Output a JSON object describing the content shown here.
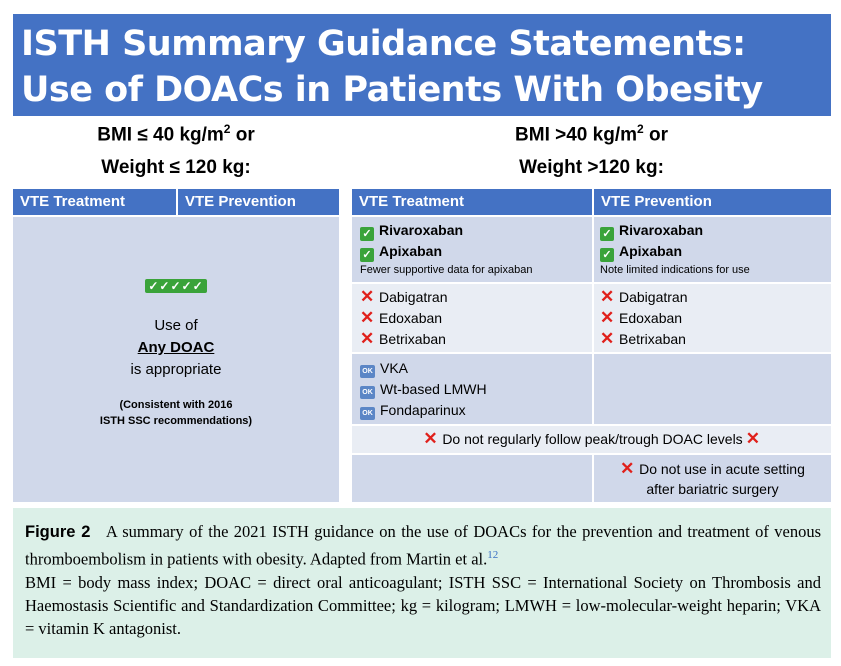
{
  "title": {
    "line1": "ISTH Summary Guidance Statements:",
    "line2": "Use of DOACs in Patients With Obesity"
  },
  "left": {
    "criteria_line1_pre": "BMI ≤ 40 kg/m",
    "criteria_line1_sup": "2",
    "criteria_line1_post": " or",
    "criteria_line2": "Weight ≤ 120 kg:",
    "headers": [
      "VTE Treatment",
      "VTE Prevention"
    ],
    "checkmarks": "✓✓✓✓✓",
    "use_of": "Use of",
    "any_doac": "Any DOAC",
    "is_appropriate": "is appropriate",
    "note_line1": "(Consistent with 2016",
    "note_line2": "ISTH SSC recommendations)"
  },
  "right": {
    "criteria_line1_pre": "BMI >40 kg/m",
    "criteria_line1_sup": "2",
    "criteria_line1_post": " or",
    "criteria_line2": "Weight >120 kg:",
    "headers": [
      "VTE Treatment",
      "VTE Prevention"
    ],
    "treatment": {
      "recommended": [
        "Rivaroxaban",
        "Apixaban"
      ],
      "recommended_note": "Fewer supportive data for apixaban",
      "not_recommended": [
        "Dabigatran",
        "Edoxaban",
        "Betrixaban"
      ],
      "alternatives": [
        "VKA",
        "Wt-based LMWH",
        "Fondaparinux"
      ]
    },
    "prevention": {
      "recommended": [
        "Rivaroxaban",
        "Apixaban"
      ],
      "recommended_note": "Note limited indications for use",
      "not_recommended": [
        "Dabigatran",
        "Edoxaban",
        "Betrixaban"
      ]
    },
    "levels_warning": "Do not regularly follow peak/trough DOAC levels",
    "bariatric_line1": "Do not use in acute setting",
    "bariatric_line2": "after bariatric surgery"
  },
  "icons": {
    "check": "check-icon",
    "cross": "x-icon",
    "ok": "ok-icon"
  },
  "icon_labels": {
    "check": "✓",
    "cross": "✕",
    "ok": "OK"
  },
  "colors": {
    "banner": "#4472c4",
    "cell": "#d0d8ea",
    "cell_light": "#e9edf4",
    "check": "#3aa33a",
    "cross": "#e0201b",
    "caption_bg": "#dcf0e8"
  },
  "caption": {
    "label": "Figure 2",
    "text1": "A summary of the 2021 ISTH guidance on the use of DOACs for the prevention and treatment of venous thromboembolism in patients with obesity. Adapted from Martin et al.",
    "ref": "12",
    "text2": "BMI = body mass index; DOAC = direct oral anticoagulant; ISTH SSC = International Society on Thrombosis and Haemostasis Scientific and Standardization Committee; kg = kilogram; LMWH = low-molecular-weight heparin; VKA = vitamin K antagonist."
  }
}
